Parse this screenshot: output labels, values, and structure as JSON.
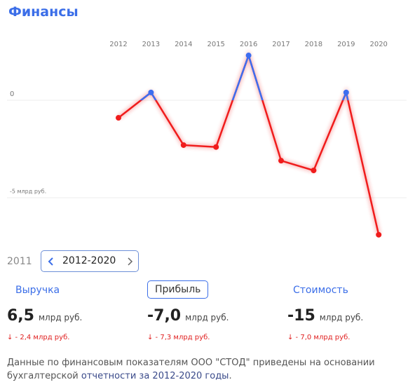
{
  "title": "Финансы",
  "chart_data": {
    "type": "line",
    "categories": [
      "2012",
      "2013",
      "2014",
      "2015",
      "2016",
      "2017",
      "2018",
      "2019",
      "2020"
    ],
    "values": [
      -0.9,
      0.4,
      -2.3,
      -2.4,
      2.3,
      -3.1,
      -3.6,
      0.4,
      -6.9
    ],
    "positive_color": "#3d6ef0",
    "negative_color": "#f01c1c",
    "ylim": [
      -7.5,
      2.5
    ],
    "yticks": [
      0,
      {
        "value": -5,
        "label": "-5 млрд руб."
      }
    ],
    "grid": true
  },
  "period": {
    "prev": "2011",
    "range": "2012-2020"
  },
  "metrics": [
    {
      "name": "Выручка",
      "value": "6,5",
      "unit": "млрд руб.",
      "change": "↓ - 2,4 млрд руб."
    },
    {
      "name": "Прибыль",
      "value": "-7,0",
      "unit": "млрд руб.",
      "change": "↓ - 7,3 млрд руб."
    },
    {
      "name": "Стоимость",
      "value": "-15",
      "unit": "млрд руб.",
      "change": "↓ - 7,0 млрд руб."
    }
  ],
  "footer": {
    "text": "Данные по финансовым показателям ООО \"СТОД\" приведены на основании бухгалтерской",
    "link": "отчетности за 2012-2020 годы",
    "end": "."
  }
}
